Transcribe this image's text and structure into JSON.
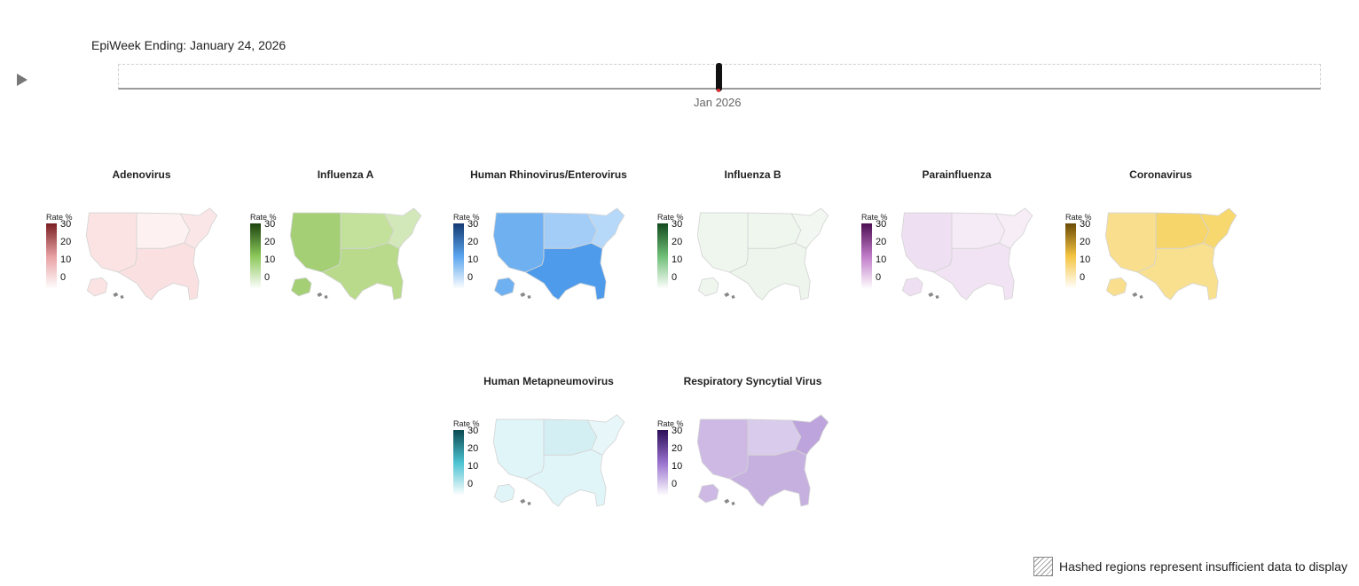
{
  "header": {
    "epiweek_label": "EpiWeek Ending: January 24, 2026"
  },
  "timeline": {
    "tick_label": "Jan 2026"
  },
  "legend_title": "Rate %",
  "legend_ticks": [
    "30",
    "20",
    "10",
    "0"
  ],
  "panels": [
    {
      "title": "Adenovirus",
      "gradient": [
        "#ffffff",
        "#e8a0a3",
        "#7a1f22"
      ],
      "region_colors": {
        "west": "#fbe3e3",
        "midwest": "#fdf1f1",
        "south": "#fae0e1",
        "northeast": "#fbe6e7",
        "alaska": "#fbe3e3"
      }
    },
    {
      "title": "Influenza A",
      "gradient": [
        "#ffffff",
        "#8cc85a",
        "#1d4410"
      ],
      "region_colors": {
        "west": "#a4cf75",
        "midwest": "#c3e19b",
        "south": "#b8da8a",
        "northeast": "#d3e8b9",
        "alaska": "#a4cf75"
      }
    },
    {
      "title": "Human Rhinovirus/Enterovirus",
      "gradient": [
        "#ffffff",
        "#5aa5ee",
        "#143a72"
      ],
      "region_colors": {
        "west": "#6eb0f0",
        "midwest": "#a3cdf7",
        "south": "#4e9bec",
        "northeast": "#b6d8f9",
        "alaska": "#6eb0f0"
      }
    },
    {
      "title": "Influenza B",
      "gradient": [
        "#ffffff",
        "#6fbf77",
        "#134a1e"
      ],
      "region_colors": {
        "west": "#eef6ee",
        "midwest": "#eef6ee",
        "south": "#edf5ec",
        "northeast": "#f2f8f1",
        "alaska": "#eef6ee"
      }
    },
    {
      "title": "Parainfluenza",
      "gradient": [
        "#ffffff",
        "#c07bc8",
        "#4d0e52"
      ],
      "region_colors": {
        "west": "#efdff2",
        "midwest": "#f5ebf6",
        "south": "#f1e3f3",
        "northeast": "#f6edf7",
        "alaska": "#efdff2"
      }
    },
    {
      "title": "Coronavirus",
      "gradient": [
        "#ffffff",
        "#f5c542",
        "#6b4a06"
      ],
      "region_colors": {
        "west": "#f9df8d",
        "midwest": "#f6d56a",
        "south": "#f9e08f",
        "northeast": "#f7d86e",
        "alaska": "#f9df8d"
      }
    },
    {
      "title": "Human Metapneumovirus",
      "gradient": [
        "#ffffff",
        "#4cc3d2",
        "#0d4a52"
      ],
      "region_colors": {
        "west": "#e0f5f8",
        "midwest": "#d4eff3",
        "south": "#e0f5f8",
        "northeast": "#e7f7f9",
        "alaska": "#e0f5f8"
      }
    },
    {
      "title": "Respiratory Syncytial Virus",
      "gradient": [
        "#ffffff",
        "#9a72cf",
        "#2c0f57"
      ],
      "region_colors": {
        "west": "#cdb9e4",
        "midwest": "#d9cbeb",
        "south": "#c6b0e0",
        "northeast": "#bda4dc",
        "alaska": "#cdb9e4"
      }
    }
  ],
  "footer": {
    "hash_legend_text": "Hashed regions represent insufficient data to display"
  }
}
